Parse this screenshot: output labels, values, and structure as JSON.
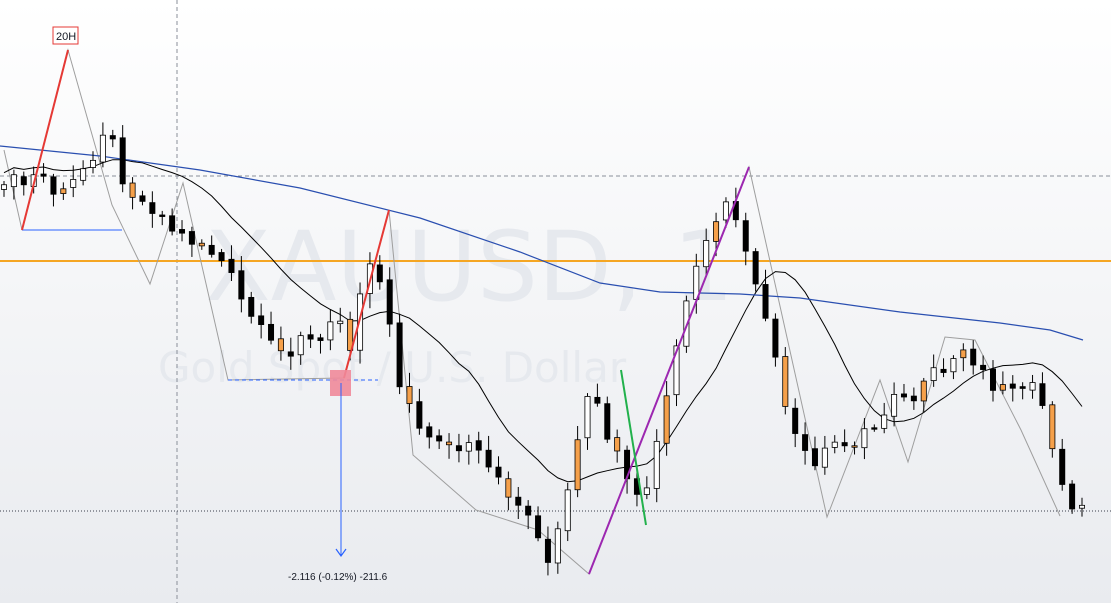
{
  "watermark": {
    "symbol": "XAUUSD, 1",
    "description": "Gold Spot / U.S. Dollar"
  },
  "annotations": {
    "tag": "20H",
    "measure": "-2.116 (-0.12%) -211.6"
  },
  "colors": {
    "up_body": "#ffffff",
    "down_body": "#000000",
    "highlight_body": "#f5a04a",
    "candle_outline": "#000000",
    "ma_fast": "#000000",
    "ma_slow": "#2a4fb0",
    "horizontal_level": "#f5a623",
    "trend_red": "#e53935",
    "trend_purple": "#9c27b0",
    "trend_green": "#22b14c",
    "measure_box": "#f08a9a",
    "measure_line": "#2962ff",
    "zigzag": "#9e9e9e"
  },
  "chart_data": {
    "type": "candlestick",
    "timeframe": "1",
    "price_scale": "unlabeled",
    "candle_count": 110,
    "grid": false,
    "overlays": [
      "moving average (fast)",
      "moving average (slow)",
      "horizontal level",
      "trend lines",
      "measure tool",
      "zigzag"
    ]
  }
}
